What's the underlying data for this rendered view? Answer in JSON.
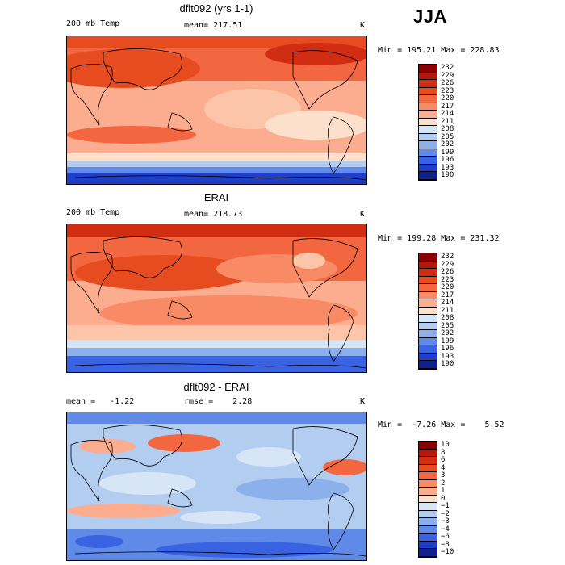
{
  "season": "JJA",
  "panels": [
    {
      "title": "dflt092 (yrs 1-1)",
      "left_label": "200 mb Temp",
      "center_label": "mean= 217.51",
      "unit": "K",
      "minmax": "Min = 195.21 Max = 228.83",
      "levels": [
        "232",
        "229",
        "226",
        "223",
        "220",
        "217",
        "214",
        "211",
        "208",
        "205",
        "202",
        "199",
        "196",
        "193",
        "190"
      ]
    },
    {
      "title": "ERAI",
      "left_label": "200 mb Temp",
      "center_label": "mean= 218.73",
      "unit": "K",
      "minmax": "Min = 199.28 Max = 231.32",
      "levels": [
        "232",
        "229",
        "226",
        "223",
        "220",
        "217",
        "214",
        "211",
        "208",
        "205",
        "202",
        "199",
        "196",
        "193",
        "190"
      ]
    },
    {
      "title": "dflt092 - ERAI",
      "left_label": "mean =   -1.22",
      "center_label": "rmse =    2.28",
      "unit": "K",
      "minmax": "Min =  -7.26 Max =    5.52",
      "levels": [
        "10",
        "8",
        "6",
        "4",
        "3",
        "2",
        "1",
        "0",
        "−1",
        "−2",
        "−3",
        "−4",
        "−6",
        "−8",
        "−10"
      ]
    }
  ],
  "colors": {
    "scale": [
      "#8b0000",
      "#b2180c",
      "#d12d12",
      "#e64c1f",
      "#f26640",
      "#f88a66",
      "#fcad8f",
      "#fde0cc",
      "#d7e6f7",
      "#b3cdf1",
      "#8cb0ec",
      "#5f8ae8",
      "#3a63e4",
      "#1f3fc8",
      "#0f1f8c"
    ]
  },
  "chart_data": [
    {
      "type": "heatmap",
      "title": "dflt092 (yrs 1-1)",
      "variable": "200 mb Temp",
      "units": "K",
      "mean": 217.51,
      "min": 195.21,
      "max": 228.83,
      "contour_levels": [
        190,
        193,
        196,
        199,
        202,
        205,
        208,
        211,
        214,
        217,
        220,
        223,
        226,
        229,
        232
      ]
    },
    {
      "type": "heatmap",
      "title": "ERAI",
      "variable": "200 mb Temp",
      "units": "K",
      "mean": 218.73,
      "min": 199.28,
      "max": 231.32,
      "contour_levels": [
        190,
        193,
        196,
        199,
        202,
        205,
        208,
        211,
        214,
        217,
        220,
        223,
        226,
        229,
        232
      ]
    },
    {
      "type": "heatmap",
      "title": "dflt092 - ERAI",
      "units": "K",
      "mean": -1.22,
      "rmse": 2.28,
      "min": -7.26,
      "max": 5.52,
      "contour_levels": [
        -10,
        -8,
        -6,
        -4,
        -3,
        -2,
        -1,
        0,
        1,
        2,
        3,
        4,
        6,
        8,
        10
      ]
    }
  ]
}
